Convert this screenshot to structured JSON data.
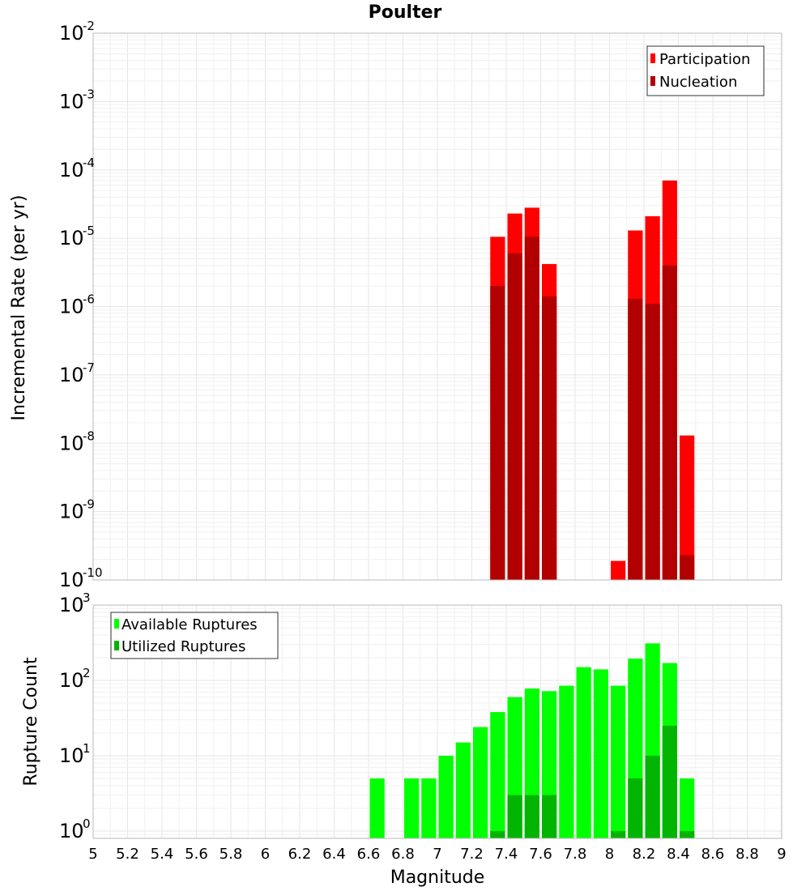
{
  "chart_data": [
    {
      "type": "bar",
      "title": "Poulter",
      "xlabel": "",
      "ylabel": "Incremental Rate (per yr)",
      "yscale": "log",
      "ylim": [
        1e-10,
        0.01
      ],
      "xlim": [
        5,
        9
      ],
      "bar_width": 0.1,
      "ytick_exponents": [
        -10,
        -9,
        -8,
        -7,
        -6,
        -5,
        -4,
        -3,
        -2
      ],
      "grid": true,
      "legend": "top-right",
      "series": [
        {
          "name": "Participation",
          "color": "#ff0000",
          "x": [
            7.35,
            7.45,
            7.55,
            7.65,
            8.05,
            8.15,
            8.25,
            8.35,
            8.45
          ],
          "values": [
            1.05e-05,
            2.3e-05,
            2.8e-05,
            4.2e-06,
            1.9e-10,
            1.3e-05,
            2.1e-05,
            7e-05,
            1.3e-08
          ]
        },
        {
          "name": "Nucleation",
          "color": "#b20000",
          "x": [
            7.35,
            7.45,
            7.55,
            7.65,
            8.15,
            8.25,
            8.35,
            8.45
          ],
          "values": [
            2e-06,
            6e-06,
            1.05e-05,
            1.4e-06,
            1.3e-06,
            1.1e-06,
            4e-06,
            2.3e-10
          ]
        }
      ]
    },
    {
      "type": "bar",
      "title": "",
      "xlabel": "Magnitude",
      "ylabel": "Rupture Count",
      "yscale": "log",
      "ylim": [
        0.8,
        1000
      ],
      "xlim": [
        5,
        9
      ],
      "bar_width": 0.1,
      "ytick_exponents": [
        0,
        1,
        2,
        3
      ],
      "xticks": [
        "5",
        "5.2",
        "5.4",
        "5.6",
        "5.8",
        "6",
        "6.2",
        "6.4",
        "6.6",
        "6.8",
        "7",
        "7.2",
        "7.4",
        "7.6",
        "7.8",
        "8",
        "8.2",
        "8.4",
        "8.6",
        "8.8",
        "9"
      ],
      "grid": true,
      "legend": "top-left",
      "series": [
        {
          "name": "Available Ruptures",
          "color": "#00ff00",
          "x": [
            6.65,
            6.85,
            6.95,
            7.05,
            7.15,
            7.25,
            7.35,
            7.45,
            7.55,
            7.65,
            7.75,
            7.85,
            7.95,
            8.05,
            8.15,
            8.25,
            8.35,
            8.45
          ],
          "values": [
            5,
            5,
            5,
            10,
            15,
            24,
            38,
            60,
            78,
            72,
            85,
            150,
            140,
            85,
            195,
            310,
            170,
            5
          ]
        },
        {
          "name": "Utilized Ruptures",
          "color": "#00b400",
          "x": [
            7.35,
            7.45,
            7.55,
            7.65,
            8.05,
            8.15,
            8.25,
            8.35,
            8.45
          ],
          "values": [
            1,
            3,
            3,
            3,
            1,
            5,
            10,
            25,
            1
          ]
        }
      ]
    }
  ]
}
